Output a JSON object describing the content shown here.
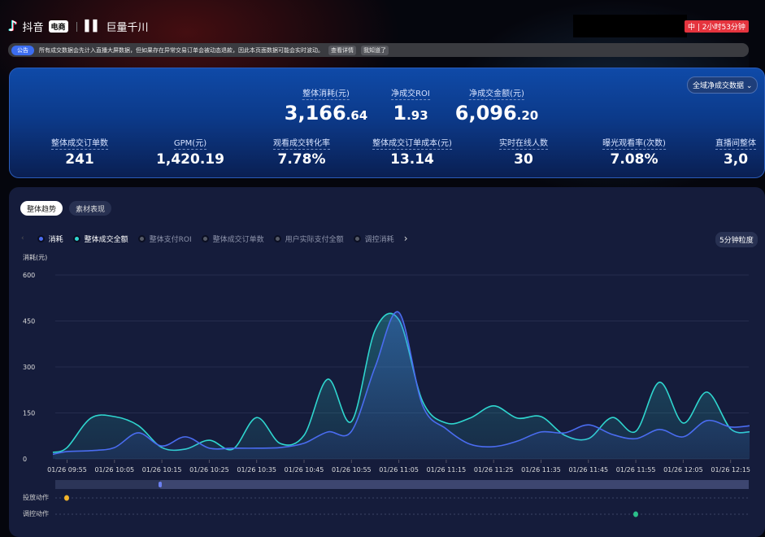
{
  "header": {
    "brand_douyin": "抖音",
    "brand_tag": "电商",
    "brand_qianchuan": "巨量千川",
    "status_badge": "中 | 2小时53分钟"
  },
  "notice": {
    "label": "公告",
    "text": "所有成交数据会先计入直播大屏数据，但如果存在异常交易订单会被动态退款，因此本页面数据可能会实时波动。",
    "detail": "查看详情",
    "dismiss": "我知道了"
  },
  "summary": {
    "primary": [
      {
        "label": "整体消耗(元)",
        "int": "3,166",
        "dec": ".64"
      },
      {
        "label": "净成交ROI",
        "int": "1",
        "dec": ".93"
      },
      {
        "label": "净成交金额(元)",
        "int": "6,096",
        "dec": ".20"
      }
    ],
    "dropdown": "全域净成交数据",
    "metrics": [
      {
        "label": "整体成交订单数",
        "value": "241"
      },
      {
        "label": "GPM(元)",
        "value": "1,420.19"
      },
      {
        "label": "观看成交转化率",
        "value": "7.78%"
      },
      {
        "label": "整体成交订单成本(元)",
        "value": "13.14"
      },
      {
        "label": "实时在线人数",
        "value": "30"
      },
      {
        "label": "曝光观看率(次数)",
        "value": "7.08%"
      },
      {
        "label": "直播间整体",
        "value": "3,0"
      }
    ]
  },
  "tabs": [
    {
      "label": "整体趋势",
      "active": true
    },
    {
      "label": "素材表现",
      "active": false
    }
  ],
  "legend": [
    {
      "label": "消耗",
      "color": "#4a6cf0",
      "on": true
    },
    {
      "label": "整体成交全额",
      "color": "#2fd6cf",
      "on": true
    },
    {
      "label": "整体支付ROI",
      "color": "#555a66",
      "on": false
    },
    {
      "label": "整体成交订单数",
      "color": "#555a66",
      "on": false
    },
    {
      "label": "用户实际支付全额",
      "color": "#555a66",
      "on": false
    },
    {
      "label": "调控消耗",
      "color": "#555a66",
      "on": false
    }
  ],
  "granularity": "5分钟粒度",
  "actions": {
    "launch": "投放动作",
    "control": "调控动作"
  },
  "chart_data": {
    "type": "area",
    "ylabel": "消耗(元)",
    "ylim": [
      0,
      600
    ],
    "yticks": [
      "0",
      "150",
      "300",
      "450",
      "600"
    ],
    "xticks": [
      "01/26 09:55",
      "01/26 10:05",
      "01/26 10:15",
      "01/26 10:25",
      "01/26 10:35",
      "01/26 10:45",
      "01/26 10:55",
      "01/26 11:05",
      "01/26 11:15",
      "01/26 11:25",
      "01/26 11:35",
      "01/26 11:45",
      "01/26 11:55",
      "01/26 12:05",
      "01/26 12:15"
    ],
    "x": [
      "09:52",
      "09:55",
      "10:00",
      "10:05",
      "10:10",
      "10:15",
      "10:20",
      "10:25",
      "10:30",
      "10:35",
      "10:40",
      "10:45",
      "10:50",
      "10:55",
      "11:00",
      "11:05",
      "11:10",
      "11:15",
      "11:20",
      "11:25",
      "11:30",
      "11:35",
      "11:40",
      "11:45",
      "11:50",
      "11:55",
      "12:00",
      "12:05",
      "12:10",
      "12:15",
      "12:19"
    ],
    "series": [
      {
        "name": "整体成交全额",
        "color": "#2fd6cf",
        "values": [
          21,
          37,
          133,
          138,
          109,
          37,
          32,
          61,
          32,
          135,
          50,
          77,
          260,
          122,
          420,
          454,
          188,
          117,
          133,
          173,
          133,
          138,
          77,
          66,
          135,
          90,
          250,
          117,
          218,
          98,
          88
        ]
      },
      {
        "name": "消耗",
        "color": "#4a6cf0",
        "values": [
          15,
          24,
          27,
          37,
          85,
          42,
          72,
          35,
          35,
          35,
          37,
          51,
          88,
          90,
          300,
          478,
          175,
          98,
          48,
          40,
          58,
          88,
          85,
          111,
          80,
          66,
          96,
          72,
          125,
          104,
          108
        ]
      }
    ]
  }
}
